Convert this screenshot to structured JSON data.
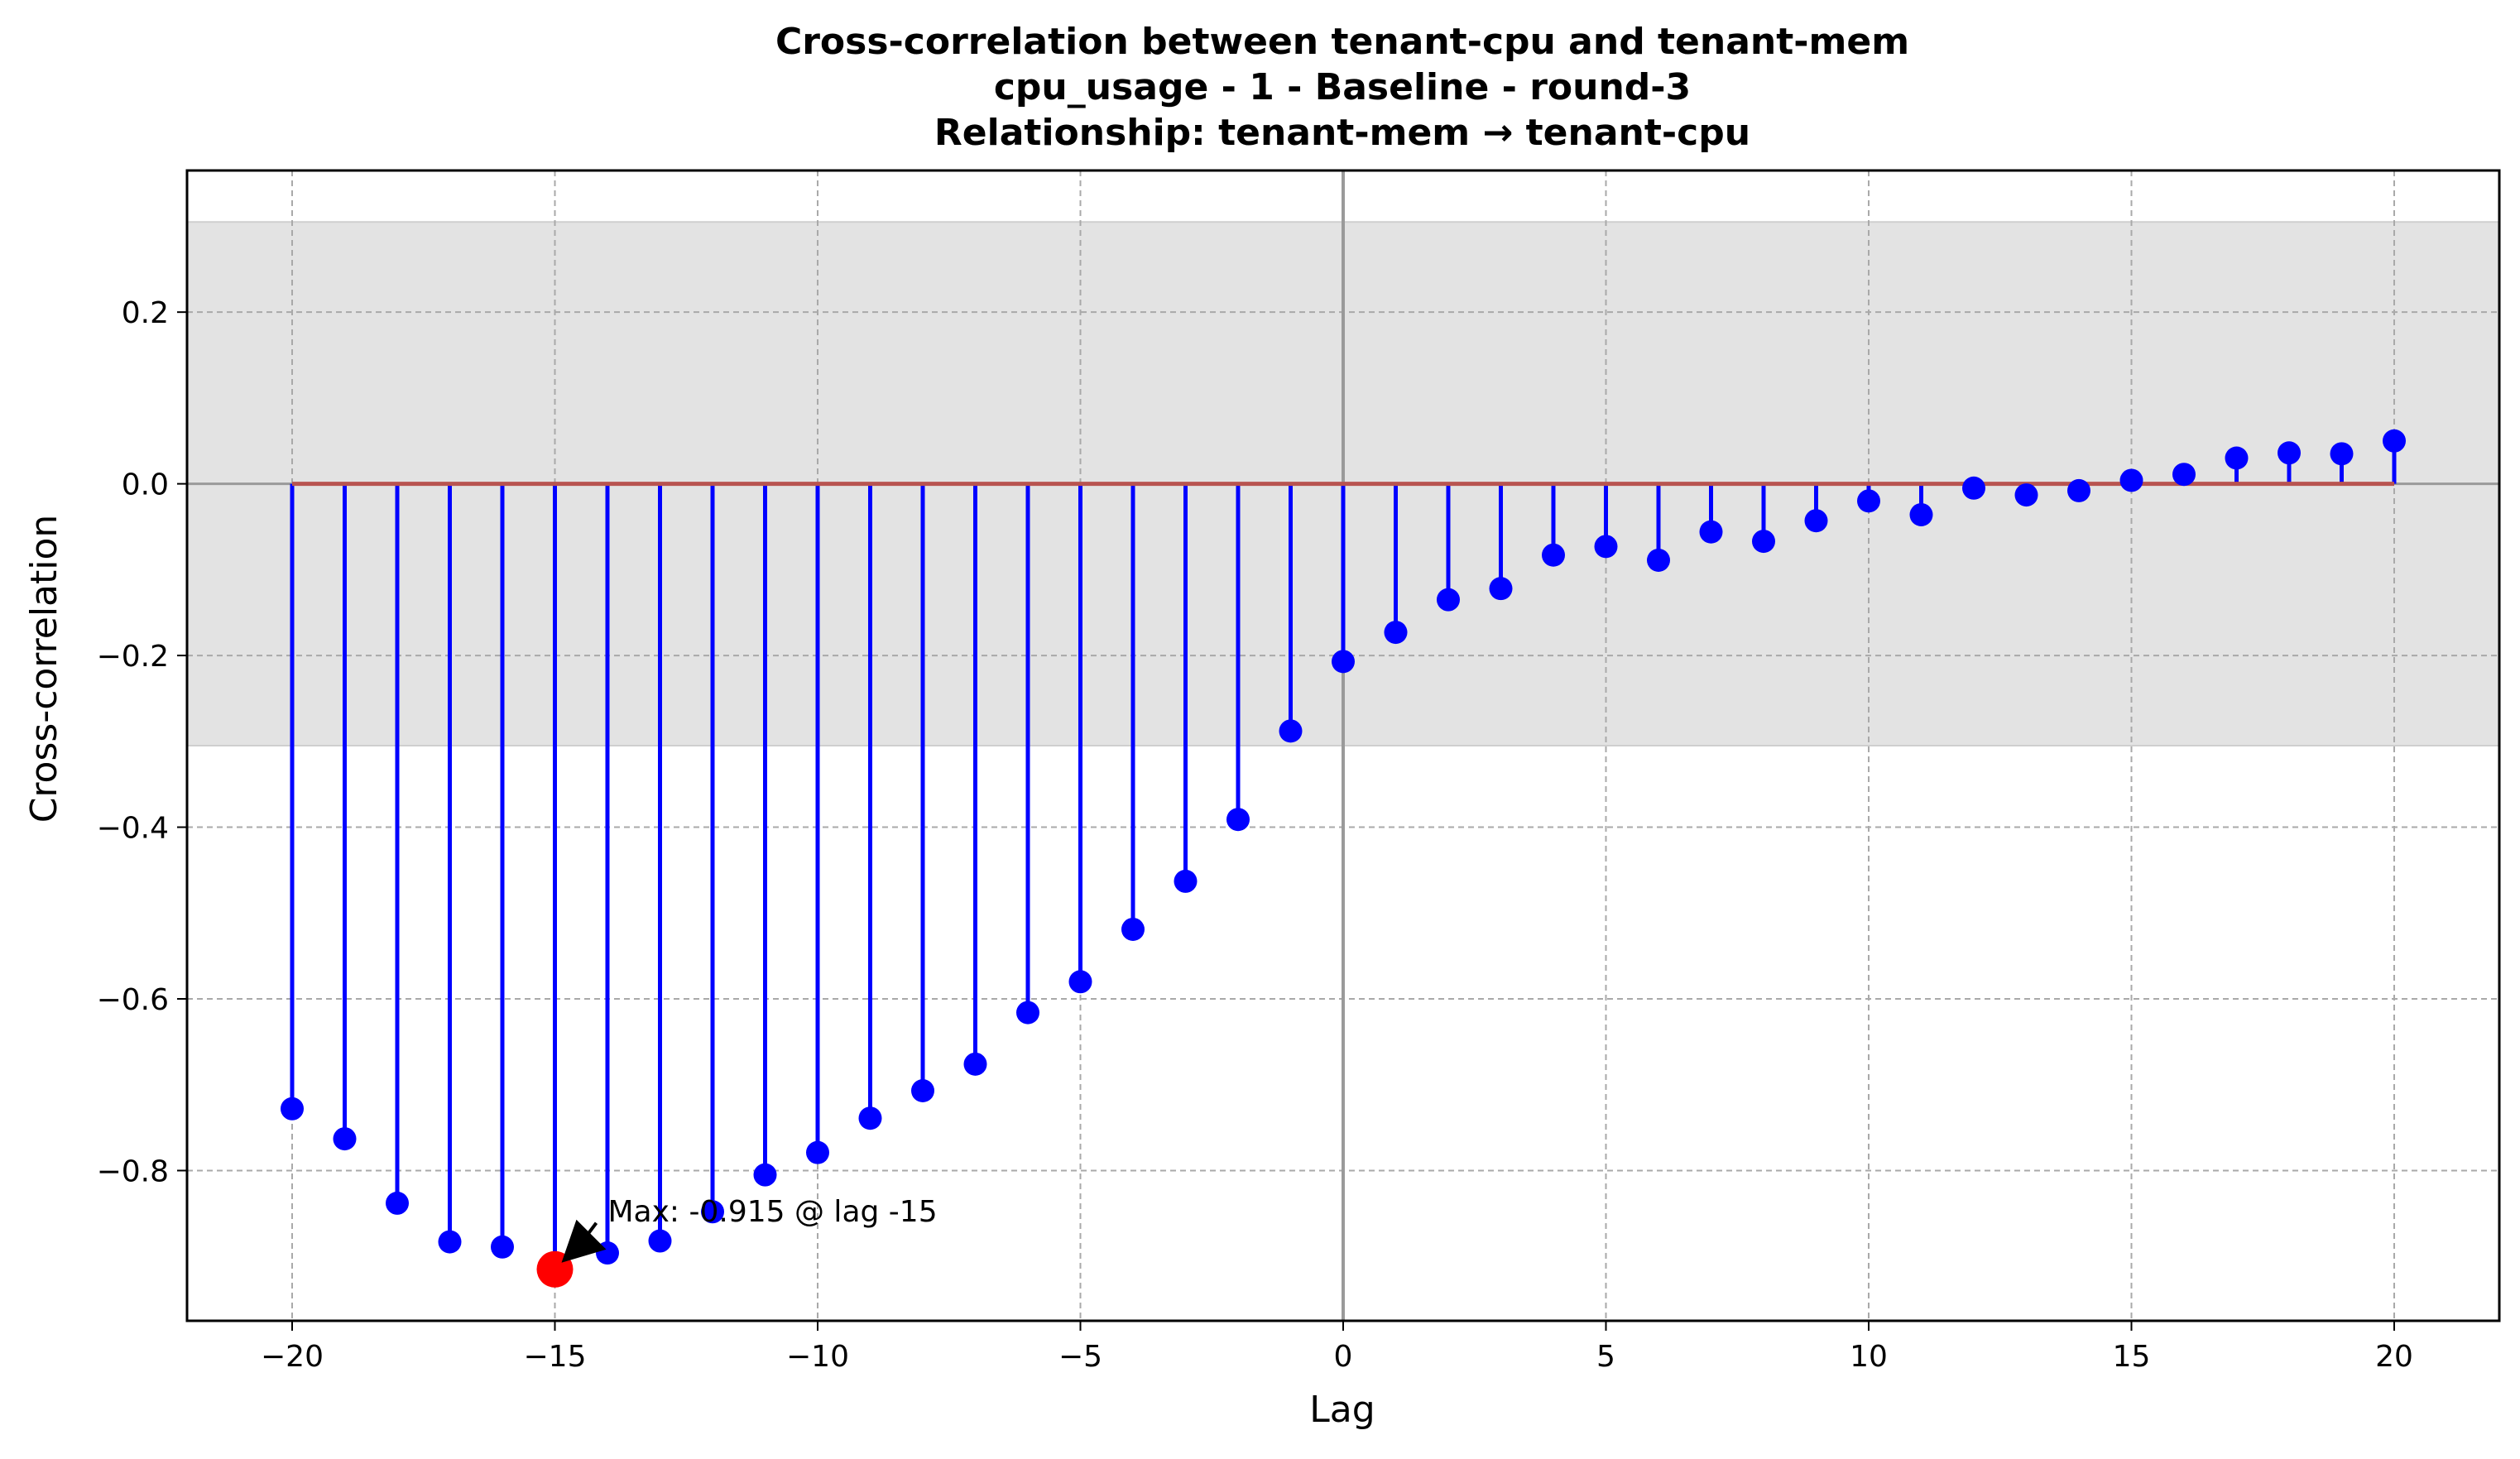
{
  "chart_data": {
    "type": "stem",
    "title_lines": [
      "Cross-correlation between tenant-cpu and tenant-mem",
      "cpu_usage - 1 - Baseline - round-3",
      "Relationship: tenant-mem → tenant-cpu"
    ],
    "xlabel": "Lag",
    "ylabel": "Cross-correlation",
    "xlim": [
      -22,
      22
    ],
    "ylim": [
      -0.975,
      0.365
    ],
    "xticks": [
      -20,
      -15,
      -10,
      -5,
      0,
      5,
      10,
      15,
      20
    ],
    "xtick_labels": [
      "−20",
      "−15",
      "−10",
      "−5",
      "0",
      "5",
      "10",
      "15",
      "20"
    ],
    "yticks": [
      0.2,
      0.0,
      -0.2,
      -0.4,
      -0.6,
      -0.8
    ],
    "ytick_labels": [
      "0.2",
      "0.0",
      "−0.2",
      "−0.4",
      "−0.6",
      "−0.8"
    ],
    "grid": true,
    "confidence_band": [
      -0.305,
      0.305
    ],
    "lags": [
      -20,
      -19,
      -18,
      -17,
      -16,
      -15,
      -14,
      -13,
      -12,
      -11,
      -10,
      -9,
      -8,
      -7,
      -6,
      -5,
      -4,
      -3,
      -2,
      -1,
      0,
      1,
      2,
      3,
      4,
      5,
      6,
      7,
      8,
      9,
      10,
      11,
      12,
      13,
      14,
      15,
      16,
      17,
      18,
      19,
      20
    ],
    "values": [
      -0.728,
      -0.763,
      -0.838,
      -0.883,
      -0.889,
      -0.915,
      -0.896,
      -0.882,
      -0.848,
      -0.805,
      -0.779,
      -0.739,
      -0.707,
      -0.676,
      -0.616,
      -0.58,
      -0.519,
      -0.463,
      -0.391,
      -0.288,
      -0.207,
      -0.173,
      -0.135,
      -0.122,
      -0.083,
      -0.073,
      -0.089,
      -0.056,
      -0.067,
      -0.043,
      -0.02,
      -0.036,
      -0.005,
      -0.013,
      -0.008,
      0.004,
      0.011,
      0.03,
      0.036,
      0.035,
      0.05
    ],
    "max_point": {
      "lag": -15,
      "value": -0.915
    },
    "annotation": "Max: -0.915 @ lag -15",
    "colors": {
      "stem": "#0000ff",
      "marker": "#0000ff",
      "max_marker": "#ff0000",
      "baseline": "#b85450",
      "band": "#e3e3e3",
      "grid": "#a9a9a9",
      "zero_vline": "#9a9a9a"
    }
  }
}
